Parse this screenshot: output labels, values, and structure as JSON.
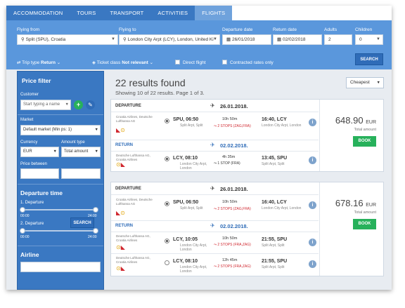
{
  "nav": {
    "tabs": [
      {
        "label": "ACCOMMODATION"
      },
      {
        "label": "TOURS"
      },
      {
        "label": "TRANSPORT"
      },
      {
        "label": "ACTIVITIES"
      },
      {
        "label": "FLIGHTS"
      }
    ],
    "active_tab": "FLIGHTS"
  },
  "search": {
    "flying_from_label": "Flying from",
    "flying_from_value": "Split (SPU), Croatia",
    "flying_to_label": "Flying to",
    "flying_to_value": "London City Arpt (LCY), London, United Ki",
    "departure_label": "Departure date",
    "departure_value": "26/01/2018",
    "return_label": "Return date",
    "return_value": "02/02/2018",
    "adults_label": "Adults",
    "adults_value": "2",
    "children_label": "Children",
    "children_value": "0",
    "trip_type_label": "Trip type",
    "trip_type_value": "Return",
    "ticket_class_label": "Ticket class",
    "ticket_class_value": "Not relevant",
    "direct_flight_label": "Direct flight",
    "contracted_rates_label": "Contracted rates only",
    "search_button": "SEARCH"
  },
  "filter": {
    "price_title": "Price filter",
    "customer_label": "Customer",
    "customer_placeholder": "Start typing a name",
    "market_label": "Market",
    "market_value": "Default market (Min ps: 1)",
    "currency_label": "Currency",
    "currency_value": "EUR",
    "amount_type_label": "Amount type",
    "amount_type_value": "Total amount",
    "price_between_label": "Price between",
    "departure_title": "Departure time",
    "dep1_label": "1. Departure",
    "dep2_label": "2. Departure",
    "time_min": "00:00",
    "time_max": "24:00",
    "airline_title": "Airline",
    "search_button": "SEARCH"
  },
  "results": {
    "title": "22 results found",
    "subtitle": "Showing 10 of 22 results. Page 1 of 3.",
    "sort_value": "Cheapest",
    "departure_label": "DEPARTURE",
    "return_label": "RETURN",
    "total_label": "Total amount",
    "book_label": "BOOK",
    "cards": [
      {
        "price": "648.90",
        "currency": "EUR",
        "dep_date": "26.01.2018.",
        "ret_date": "02.02.2018.",
        "legs": [
          {
            "airline": "Croatia Airlines, Deutsche Lufthansa AG",
            "from": "SPU, 06:50",
            "from_apt": "Split Arpt, Split",
            "dur": "10h 50m",
            "stops": "2 STOPS (ZAG,FRA)",
            "to": "16:40, LCY",
            "to_apt": "London City Arpt, London"
          },
          {
            "airline": "Deutsche Lufthansa AG, Croatia Airlines",
            "from": "LCY, 08:10",
            "from_apt": "London City Arpt, London",
            "dur": "4h 35m",
            "stops": "1 STOP (FRA)",
            "to": "13:45, SPU",
            "to_apt": "Split Arpt, Split"
          }
        ]
      },
      {
        "price": "678.16",
        "currency": "EUR",
        "dep_date": "26.01.2018.",
        "ret_date": "02.02.2018.",
        "legs": [
          {
            "airline": "Croatia Airlines, Deutsche Lufthansa AG",
            "from": "SPU, 06:50",
            "from_apt": "Split Arpt, Split",
            "dur": "10h 50m",
            "stops": "2 STOPS (ZAG,FRA)",
            "to": "16:40, LCY",
            "to_apt": "London City Arpt, London"
          },
          {
            "airline": "Deutsche Lufthansa AG, Croatia Airlines",
            "from": "LCY, 10:05",
            "from_apt": "London City Arpt, London",
            "dur": "10h 50m",
            "stops": "2 STOPS (FRA,ZAG)",
            "to": "21:55, SPU",
            "to_apt": "Split Arpt, Split"
          },
          {
            "airline": "Deutsche Lufthansa AG, Croatia Airlines",
            "from": "LCY, 08:10",
            "from_apt": "London City Arpt, London",
            "dur": "12h 45m",
            "stops": "2 STOPS (FRA,ZAG)",
            "to": "21:55, SPU",
            "to_apt": "Split Arpt, Split"
          }
        ]
      }
    ]
  },
  "colors": {
    "tab_bar": "#3a78c2",
    "search_bar": "#5a97dc",
    "sidebar": "#3a78c2",
    "book_green": "#27b15b",
    "stops_red": "#d0272f",
    "return_blue": "#2f6cb8"
  },
  "icons": {
    "calendar": "calendar-icon",
    "plane": "plane-icon",
    "info": "info-icon",
    "add": "plus-icon",
    "edit": "pencil-icon"
  }
}
